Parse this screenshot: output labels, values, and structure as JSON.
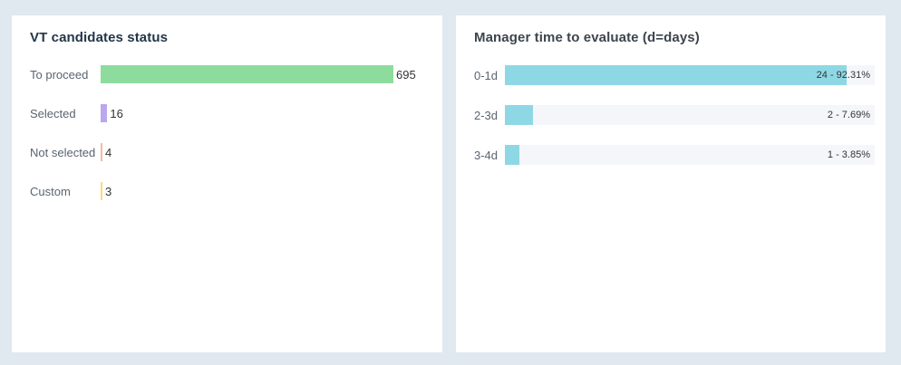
{
  "page": {
    "background_color": "#e0e8f0",
    "card_background_color": "#ffffff"
  },
  "chart_data": [
    {
      "type": "bar",
      "orientation": "horizontal",
      "title": "VT candidates status",
      "categories": [
        "To proceed",
        "Selected",
        "Not selected",
        "Custom"
      ],
      "values": [
        695,
        16,
        4,
        3
      ],
      "value_labels": [
        "695",
        "16",
        "4",
        "3"
      ],
      "bar_colors": [
        "#8edc9d",
        "#b9a7f0",
        "#f5b9a2",
        "#fbda7c"
      ],
      "xlim": [
        0,
        695
      ],
      "grid": false,
      "legend": false,
      "value_label_position": "right-of-bar"
    },
    {
      "type": "bar",
      "orientation": "horizontal",
      "title": "Manager time to evaluate (d=days)",
      "categories": [
        "0-1d",
        "2-3d",
        "3-4d"
      ],
      "values": [
        24,
        2,
        1
      ],
      "percents": [
        92.31,
        7.69,
        3.85
      ],
      "value_labels": [
        "24 - 92.31%",
        "2 - 7.69%",
        "1 - 3.85%"
      ],
      "bar_color": "#8ed8e5",
      "track_color": "#f4f6f9",
      "xlim_percent": [
        0,
        100
      ],
      "grid": false,
      "legend": false,
      "value_label_position": "inside-track-right"
    }
  ]
}
